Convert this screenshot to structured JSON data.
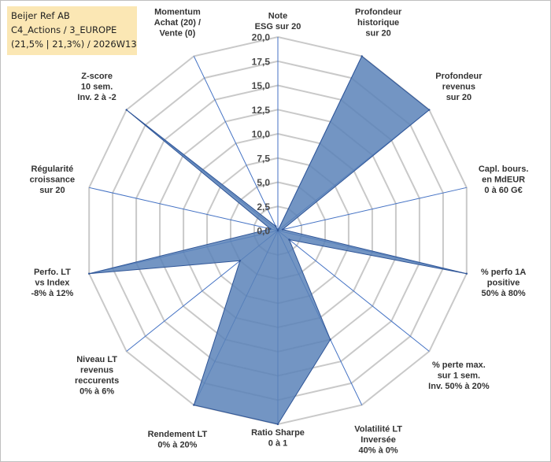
{
  "header": {
    "line1": "Beijer Ref AB",
    "line2": "C4_Actions / 3_EUROPE",
    "line3": "(21,5% | 21,3%) / 2026W13",
    "background": "#fbe7b4"
  },
  "chart_data": {
    "type": "radar",
    "title": "Beijer Ref AB",
    "rmax": 20,
    "ticks": [
      "0,0",
      "2,5",
      "5,0",
      "7,5",
      "10,0",
      "12,5",
      "15,0",
      "17,5",
      "20,0"
    ],
    "axes": [
      {
        "label": [
          "Note",
          "ESG sur 20"
        ],
        "value": 0.0
      },
      {
        "label": [
          "Profondeur",
          "historique",
          "sur 20"
        ],
        "value": 20.0
      },
      {
        "label": [
          "Profondeur",
          "revenus",
          "sur 20"
        ],
        "value": 20.0
      },
      {
        "label": [
          "Capl. bours.",
          "en MdEUR",
          "0 à 60 G€"
        ],
        "value": 0.5
      },
      {
        "label": [
          "% perfo 1A",
          "positive",
          "50% à 80%"
        ],
        "value": 20.0
      },
      {
        "label": [
          "% perte max.",
          "sur 1 sem.",
          "Inv. 50% à 20%"
        ],
        "value": 1.5
      },
      {
        "label": [
          "Volatilité LT",
          "Inversée",
          "40% à 0%"
        ],
        "value": 12.5
      },
      {
        "label": [
          "Ratio Sharpe",
          "0 à 1"
        ],
        "value": 20.0
      },
      {
        "label": [
          "Rendement LT",
          "0% à 20%"
        ],
        "value": 20.0
      },
      {
        "label": [
          "Niveau LT",
          "revenus",
          "reccurents",
          "0% à 6%"
        ],
        "value": 5.0
      },
      {
        "label": [
          "Perfo. LT",
          "vs Index",
          "-8% à 12%"
        ],
        "value": 20.0
      },
      {
        "label": [
          "Régularité",
          "croissance",
          "sur 20"
        ],
        "value": 0.8
      },
      {
        "label": [
          "Z-score",
          "10 sem.",
          "Inv. 2 à -2"
        ],
        "value": 20.0
      },
      {
        "label": [
          "Momentum",
          "Achat (20) /",
          "Vente (0)"
        ],
        "value": 0.5
      }
    ],
    "colors": {
      "fill": "#5a82b8",
      "stroke": "#2f5597",
      "grid": "#c9c9c9",
      "spoke": "#4472c4"
    }
  }
}
